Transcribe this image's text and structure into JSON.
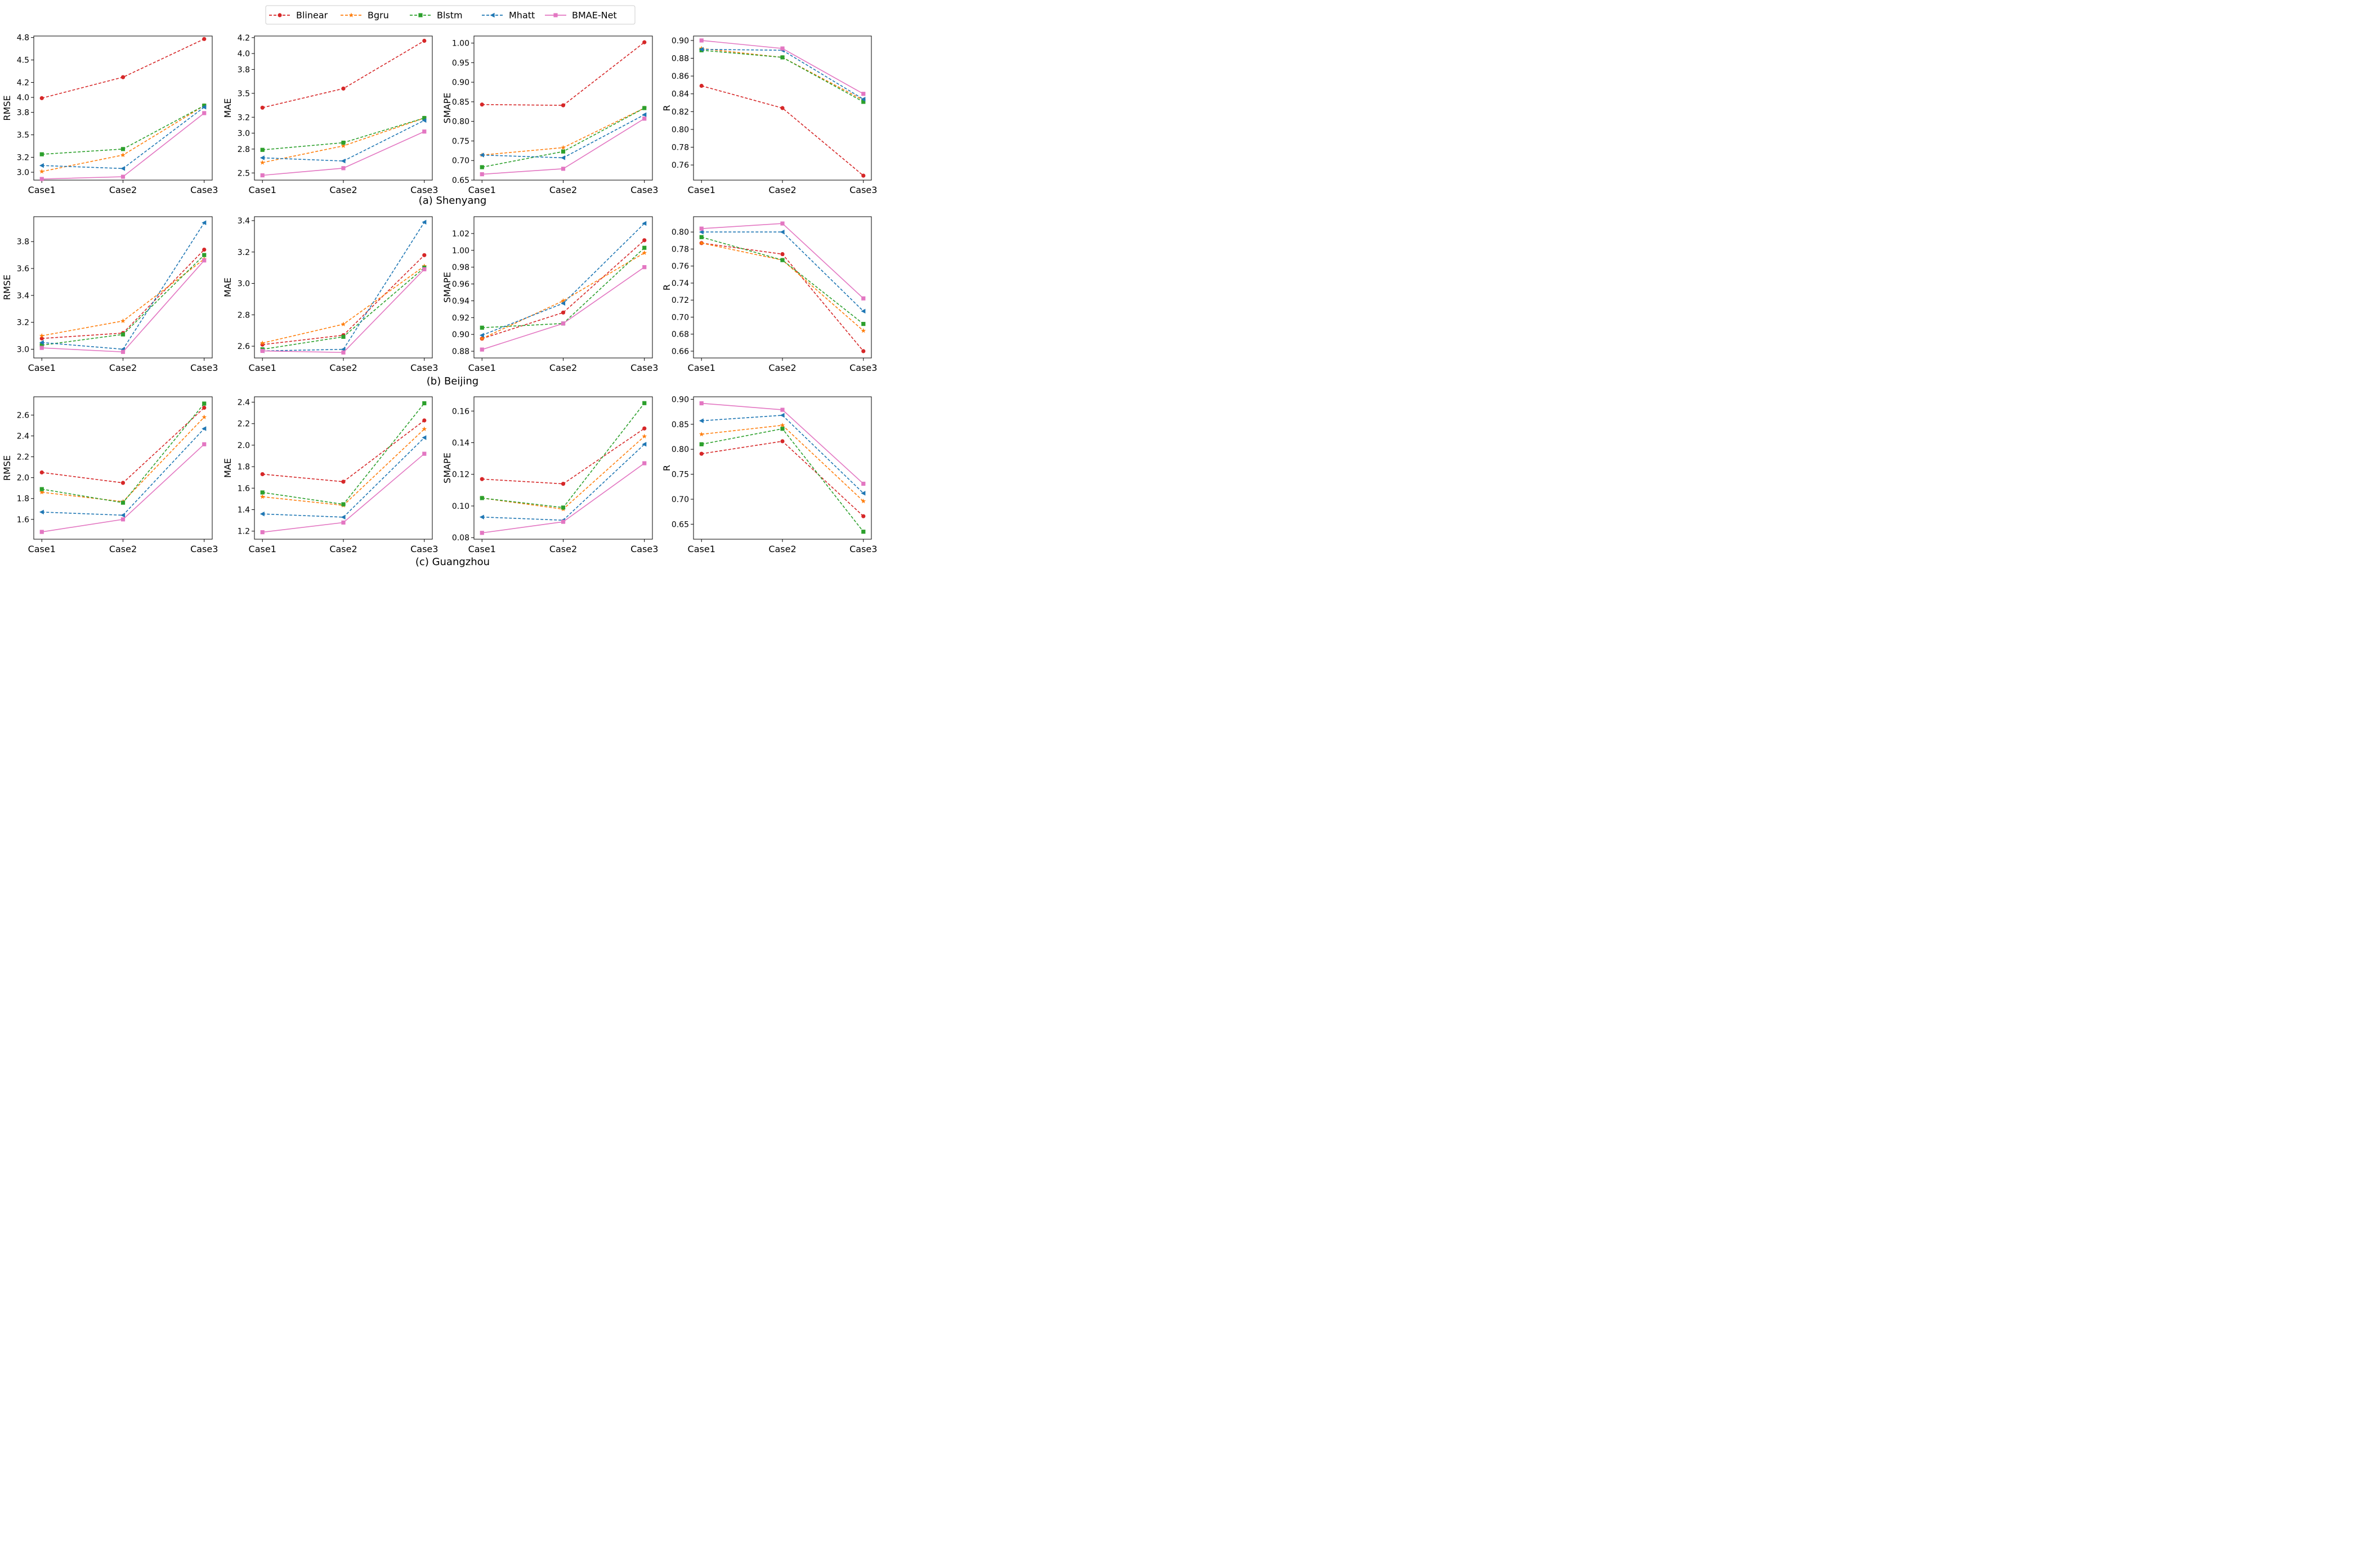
{
  "legend": {
    "placement": "top-center",
    "entries": [
      {
        "name": "Blinear",
        "color": "#d62728",
        "marker": "circle"
      },
      {
        "name": "Bgru",
        "color": "#ff7f0e",
        "marker": "star"
      },
      {
        "name": "Blstm",
        "color": "#2ca02c",
        "marker": "square"
      },
      {
        "name": "Mhatt",
        "color": "#1f77b4",
        "marker": "triangle-left"
      },
      {
        "name": "BMAE-Net",
        "color": "#e377c2",
        "marker": "square"
      }
    ]
  },
  "row_captions": [
    "(a) Shenyang",
    "(b) Beijing",
    "(c) Guangzhou"
  ],
  "chart_data": [
    {
      "type": "line",
      "row": 0,
      "col": 0,
      "ylabel": "RMSE",
      "categories": [
        "Case1",
        "Case2",
        "Case3"
      ],
      "ylim": [
        2.895,
        4.82
      ],
      "yticks": [
        3.0,
        3.2,
        3.5,
        3.8,
        4.0,
        4.2,
        4.5,
        4.8
      ],
      "ytick_labels": [
        "3.0",
        "3.2",
        "3.5",
        "3.8",
        "4.0",
        "4.2",
        "4.5",
        "4.8"
      ],
      "series": [
        {
          "name": "Blinear",
          "values": [
            3.99,
            4.27,
            4.78
          ]
        },
        {
          "name": "Bgru",
          "values": [
            3.01,
            3.23,
            3.89
          ]
        },
        {
          "name": "Blstm",
          "values": [
            3.24,
            3.31,
            3.89
          ]
        },
        {
          "name": "Mhatt",
          "values": [
            3.09,
            3.05,
            3.87
          ]
        },
        {
          "name": "BMAE-Net",
          "values": [
            2.91,
            2.94,
            3.79
          ]
        }
      ]
    },
    {
      "type": "line",
      "row": 0,
      "col": 1,
      "ylabel": "MAE",
      "categories": [
        "Case1",
        "Case2",
        "Case3"
      ],
      "ylim": [
        2.41,
        4.22
      ],
      "yticks": [
        2.5,
        2.8,
        3.0,
        3.2,
        3.5,
        3.8,
        4.0,
        4.2
      ],
      "ytick_labels": [
        "2.5",
        "2.8",
        "3.0",
        "3.2",
        "3.5",
        "3.8",
        "4.0",
        "4.2"
      ],
      "series": [
        {
          "name": "Blinear",
          "values": [
            3.32,
            3.56,
            4.16
          ]
        },
        {
          "name": "Bgru",
          "values": [
            2.63,
            2.84,
            3.19
          ]
        },
        {
          "name": "Blstm",
          "values": [
            2.79,
            2.88,
            3.19
          ]
        },
        {
          "name": "Mhatt",
          "values": [
            2.69,
            2.65,
            3.16
          ]
        },
        {
          "name": "BMAE-Net",
          "values": [
            2.47,
            2.56,
            3.02
          ]
        }
      ]
    },
    {
      "type": "line",
      "row": 0,
      "col": 2,
      "ylabel": "SMAPE",
      "categories": [
        "Case1",
        "Case2",
        "Case3"
      ],
      "ylim": [
        0.65,
        1.018
      ],
      "yticks": [
        0.65,
        0.7,
        0.75,
        0.8,
        0.85,
        0.9,
        0.95,
        1.0
      ],
      "ytick_labels": [
        "0.65",
        "0.70",
        "0.75",
        "0.80",
        "0.85",
        "0.90",
        "0.95",
        "1.00"
      ],
      "series": [
        {
          "name": "Blinear",
          "values": [
            0.843,
            0.841,
            1.002
          ]
        },
        {
          "name": "Bgru",
          "values": [
            0.714,
            0.733,
            0.834
          ]
        },
        {
          "name": "Blstm",
          "values": [
            0.683,
            0.723,
            0.834
          ]
        },
        {
          "name": "Mhatt",
          "values": [
            0.714,
            0.707,
            0.817
          ]
        },
        {
          "name": "BMAE-Net",
          "values": [
            0.665,
            0.679,
            0.807
          ]
        }
      ]
    },
    {
      "type": "line",
      "row": 0,
      "col": 3,
      "ylabel": "R",
      "categories": [
        "Case1",
        "Case2",
        "Case3"
      ],
      "ylim": [
        0.743,
        0.905
      ],
      "yticks": [
        0.76,
        0.78,
        0.8,
        0.82,
        0.84,
        0.86,
        0.88,
        0.9
      ],
      "ytick_labels": [
        "0.76",
        "0.78",
        "0.80",
        "0.82",
        "0.84",
        "0.86",
        "0.88",
        "0.90"
      ],
      "series": [
        {
          "name": "Blinear",
          "values": [
            0.849,
            0.824,
            0.748
          ]
        },
        {
          "name": "Bgru",
          "values": [
            0.891,
            0.881,
            0.833
          ]
        },
        {
          "name": "Blstm",
          "values": [
            0.889,
            0.881,
            0.831
          ]
        },
        {
          "name": "Mhatt",
          "values": [
            0.89,
            0.889,
            0.834
          ]
        },
        {
          "name": "BMAE-Net",
          "values": [
            0.9,
            0.891,
            0.84
          ]
        }
      ]
    },
    {
      "type": "line",
      "row": 1,
      "col": 0,
      "ylabel": "RMSE",
      "categories": [
        "Case1",
        "Case2",
        "Case3"
      ],
      "ylim": [
        2.935,
        3.985
      ],
      "yticks": [
        3.0,
        3.2,
        3.4,
        3.6,
        3.8
      ],
      "ytick_labels": [
        "3.0",
        "3.2",
        "3.4",
        "3.6",
        "3.8"
      ],
      "series": [
        {
          "name": "Blinear",
          "values": [
            3.08,
            3.12,
            3.74
          ]
        },
        {
          "name": "Bgru",
          "values": [
            3.1,
            3.21,
            3.67
          ]
        },
        {
          "name": "Blstm",
          "values": [
            3.03,
            3.11,
            3.7
          ]
        },
        {
          "name": "Mhatt",
          "values": [
            3.05,
            3.0,
            3.94
          ]
        },
        {
          "name": "BMAE-Net",
          "values": [
            3.01,
            2.98,
            3.66
          ]
        }
      ]
    },
    {
      "type": "line",
      "row": 1,
      "col": 1,
      "ylabel": "MAE",
      "categories": [
        "Case1",
        "Case2",
        "Case3"
      ],
      "ylim": [
        2.525,
        3.425
      ],
      "yticks": [
        2.6,
        2.8,
        3.0,
        3.2,
        3.4
      ],
      "ytick_labels": [
        "2.6",
        "2.8",
        "3.0",
        "3.2",
        "3.4"
      ],
      "series": [
        {
          "name": "Blinear",
          "values": [
            2.61,
            2.67,
            3.18
          ]
        },
        {
          "name": "Bgru",
          "values": [
            2.62,
            2.74,
            3.11
          ]
        },
        {
          "name": "Blstm",
          "values": [
            2.58,
            2.66,
            3.1
          ]
        },
        {
          "name": "Mhatt",
          "values": [
            2.57,
            2.58,
            3.39
          ]
        },
        {
          "name": "BMAE-Net",
          "values": [
            2.57,
            2.56,
            3.09
          ]
        }
      ]
    },
    {
      "type": "line",
      "row": 1,
      "col": 2,
      "ylabel": "SMAPE",
      "categories": [
        "Case1",
        "Case2",
        "Case3"
      ],
      "ylim": [
        0.872,
        1.04
      ],
      "yticks": [
        0.88,
        0.9,
        0.92,
        0.94,
        0.96,
        0.98,
        1.0,
        1.02
      ],
      "ytick_labels": [
        "0.88",
        "0.90",
        "0.92",
        "0.94",
        "0.96",
        "0.98",
        "1.00",
        "1.02"
      ],
      "series": [
        {
          "name": "Blinear",
          "values": [
            0.895,
            0.926,
            1.012
          ]
        },
        {
          "name": "Bgru",
          "values": [
            0.895,
            0.94,
            0.997
          ]
        },
        {
          "name": "Blstm",
          "values": [
            0.908,
            0.913,
            1.003
          ]
        },
        {
          "name": "Mhatt",
          "values": [
            0.899,
            0.937,
            1.032
          ]
        },
        {
          "name": "BMAE-Net",
          "values": [
            0.882,
            0.913,
            0.98
          ]
        }
      ]
    },
    {
      "type": "line",
      "row": 1,
      "col": 3,
      "ylabel": "R",
      "categories": [
        "Case1",
        "Case2",
        "Case3"
      ],
      "ylim": [
        0.652,
        0.818
      ],
      "yticks": [
        0.66,
        0.68,
        0.7,
        0.72,
        0.74,
        0.76,
        0.78,
        0.8
      ],
      "ytick_labels": [
        "0.66",
        "0.68",
        "0.70",
        "0.72",
        "0.74",
        "0.76",
        "0.78",
        "0.80"
      ],
      "series": [
        {
          "name": "Blinear",
          "values": [
            0.787,
            0.774,
            0.66
          ]
        },
        {
          "name": "Bgru",
          "values": [
            0.787,
            0.767,
            0.684
          ]
        },
        {
          "name": "Blstm",
          "values": [
            0.794,
            0.767,
            0.692
          ]
        },
        {
          "name": "Mhatt",
          "values": [
            0.8,
            0.8,
            0.707
          ]
        },
        {
          "name": "BMAE-Net",
          "values": [
            0.804,
            0.81,
            0.722
          ]
        }
      ]
    },
    {
      "type": "line",
      "row": 2,
      "col": 0,
      "ylabel": "RMSE",
      "categories": [
        "Case1",
        "Case2",
        "Case3"
      ],
      "ylim": [
        1.41,
        2.775
      ],
      "yticks": [
        1.6,
        1.8,
        2.0,
        2.2,
        2.4,
        2.6
      ],
      "ytick_labels": [
        "1.6",
        "1.8",
        "2.0",
        "2.2",
        "2.4",
        "2.6"
      ],
      "series": [
        {
          "name": "Blinear",
          "values": [
            2.05,
            1.95,
            2.67
          ]
        },
        {
          "name": "Bgru",
          "values": [
            1.86,
            1.77,
            2.58
          ]
        },
        {
          "name": "Blstm",
          "values": [
            1.89,
            1.76,
            2.71
          ]
        },
        {
          "name": "Mhatt",
          "values": [
            1.67,
            1.64,
            2.47
          ]
        },
        {
          "name": "BMAE-Net",
          "values": [
            1.48,
            1.6,
            2.32
          ]
        }
      ]
    },
    {
      "type": "line",
      "row": 2,
      "col": 1,
      "ylabel": "MAE",
      "categories": [
        "Case1",
        "Case2",
        "Case3"
      ],
      "ylim": [
        1.125,
        2.45
      ],
      "yticks": [
        1.2,
        1.4,
        1.6,
        1.8,
        2.0,
        2.2,
        2.4
      ],
      "ytick_labels": [
        "1.2",
        "1.4",
        "1.6",
        "1.8",
        "2.0",
        "2.2",
        "2.4"
      ],
      "series": [
        {
          "name": "Blinear",
          "values": [
            1.73,
            1.66,
            2.23
          ]
        },
        {
          "name": "Bgru",
          "values": [
            1.52,
            1.44,
            2.15
          ]
        },
        {
          "name": "Blstm",
          "values": [
            1.56,
            1.45,
            2.39
          ]
        },
        {
          "name": "Mhatt",
          "values": [
            1.36,
            1.33,
            2.07
          ]
        },
        {
          "name": "BMAE-Net",
          "values": [
            1.19,
            1.28,
            1.92
          ]
        }
      ]
    },
    {
      "type": "line",
      "row": 2,
      "col": 2,
      "ylabel": "SMAPE",
      "categories": [
        "Case1",
        "Case2",
        "Case3"
      ],
      "ylim": [
        0.079,
        0.169
      ],
      "yticks": [
        0.08,
        0.1,
        0.12,
        0.14,
        0.16
      ],
      "ytick_labels": [
        "0.08",
        "0.10",
        "0.12",
        "0.14",
        "0.16"
      ],
      "series": [
        {
          "name": "Blinear",
          "values": [
            0.117,
            0.114,
            0.149
          ]
        },
        {
          "name": "Bgru",
          "values": [
            0.105,
            0.098,
            0.144
          ]
        },
        {
          "name": "Blstm",
          "values": [
            0.105,
            0.099,
            0.165
          ]
        },
        {
          "name": "Mhatt",
          "values": [
            0.093,
            0.091,
            0.139
          ]
        },
        {
          "name": "BMAE-Net",
          "values": [
            0.083,
            0.09,
            0.127
          ]
        }
      ]
    },
    {
      "type": "line",
      "row": 2,
      "col": 3,
      "ylabel": "R",
      "categories": [
        "Case1",
        "Case2",
        "Case3"
      ],
      "ylim": [
        0.62,
        0.905
      ],
      "yticks": [
        0.65,
        0.7,
        0.75,
        0.8,
        0.85,
        0.9
      ],
      "ytick_labels": [
        "0.65",
        "0.70",
        "0.75",
        "0.80",
        "0.85",
        "0.90"
      ],
      "series": [
        {
          "name": "Blinear",
          "values": [
            0.791,
            0.816,
            0.666
          ]
        },
        {
          "name": "Bgru",
          "values": [
            0.83,
            0.848,
            0.696
          ]
        },
        {
          "name": "Blstm",
          "values": [
            0.81,
            0.841,
            0.635
          ]
        },
        {
          "name": "Mhatt",
          "values": [
            0.857,
            0.868,
            0.712
          ]
        },
        {
          "name": "BMAE-Net",
          "values": [
            0.892,
            0.879,
            0.731
          ]
        }
      ]
    }
  ]
}
